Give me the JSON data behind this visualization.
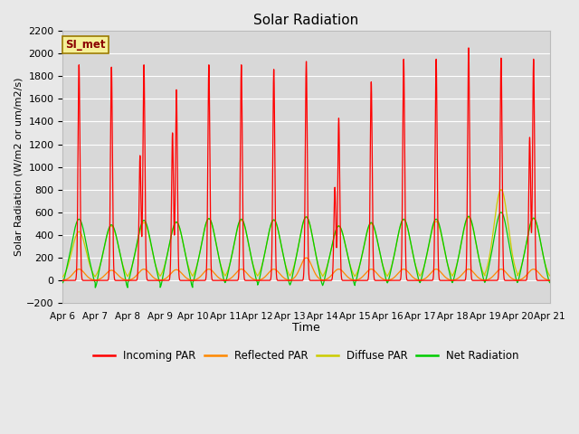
{
  "title": "Solar Radiation",
  "xlabel": "Time",
  "ylabel": "Solar Radiation (W/m2 or um/m2/s)",
  "ylim": [
    -200,
    2200
  ],
  "x_tick_labels": [
    "Apr 6",
    "Apr 7",
    "Apr 8",
    "Apr 9",
    "Apr 10",
    "Apr 11",
    "Apr 12",
    "Apr 13",
    "Apr 14",
    "Apr 15",
    "Apr 16",
    "Apr 17",
    "Apr 18",
    "Apr 19",
    "Apr 20",
    "Apr 21"
  ],
  "station_label": "SI_met",
  "background_color": "#e8e8e8",
  "plot_bg_color": "#d8d8d8",
  "legend_entries": [
    "Incoming PAR",
    "Reflected PAR",
    "Diffuse PAR",
    "Net Radiation"
  ],
  "line_colors": [
    "#ff0000",
    "#ff8800",
    "#cccc00",
    "#00cc00"
  ],
  "n_days": 15,
  "incoming_par_peaks": [
    1900,
    1880,
    1900,
    1680,
    1900,
    1900,
    1860,
    1930,
    1430,
    1750,
    1950,
    1950,
    2050,
    1960,
    1950
  ],
  "incoming_secondary": [
    0,
    0,
    1100,
    1300,
    0,
    0,
    0,
    0,
    820,
    0,
    0,
    0,
    0,
    0,
    1260
  ],
  "reflected_par_peaks": [
    100,
    90,
    100,
    95,
    100,
    100,
    100,
    200,
    100,
    100,
    100,
    100,
    100,
    100,
    100
  ],
  "diffuse_par_peaks": [
    430,
    480,
    510,
    510,
    545,
    530,
    530,
    560,
    480,
    500,
    535,
    520,
    555,
    800,
    545
  ],
  "net_rad_peaks": [
    540,
    490,
    530,
    515,
    545,
    540,
    535,
    560,
    480,
    510,
    540,
    540,
    565,
    600,
    550
  ],
  "net_rad_negatives": [
    -60,
    -100,
    -60,
    -100,
    -60,
    -60,
    -80,
    -80,
    -80,
    -60,
    -60,
    -60,
    -60,
    -60,
    -60
  ]
}
